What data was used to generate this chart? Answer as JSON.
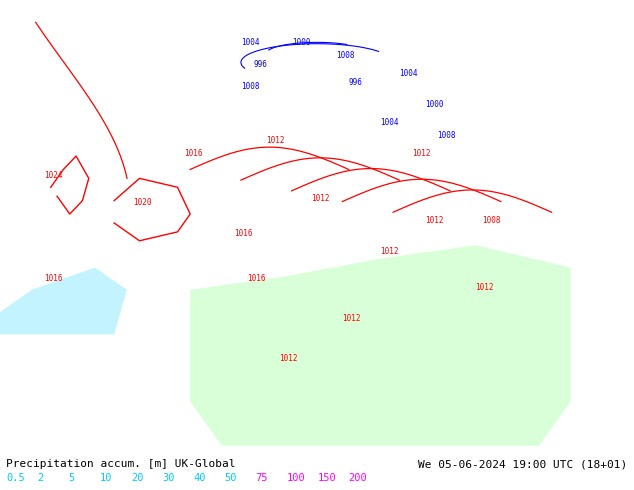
{
  "title_left": "Precipitation accum. [m] UK-Global",
  "title_right": "We 05-06-2024 19:00 UTC (18+01)",
  "colorbar_values": [
    "0.5",
    "2",
    "5",
    "10",
    "20",
    "30",
    "40",
    "50",
    "75",
    "100",
    "150",
    "200"
  ],
  "colorbar_colors": [
    "#00ffff",
    "#00ffff",
    "#00ffff",
    "#00ffff",
    "#00ffff",
    "#00ffff",
    "#00ffff",
    "#00ffff",
    "#ff00ff",
    "#ff00ff",
    "#ff00ff",
    "#ff00ff"
  ],
  "bg_color": "#ffffff",
  "map_bg": "#c8c8a0",
  "bottom_bar_bg": "#d0d0d0",
  "label_color_left": "#000000",
  "label_color_right": "#000000",
  "fig_width": 6.34,
  "fig_height": 4.9,
  "dpi": 100
}
